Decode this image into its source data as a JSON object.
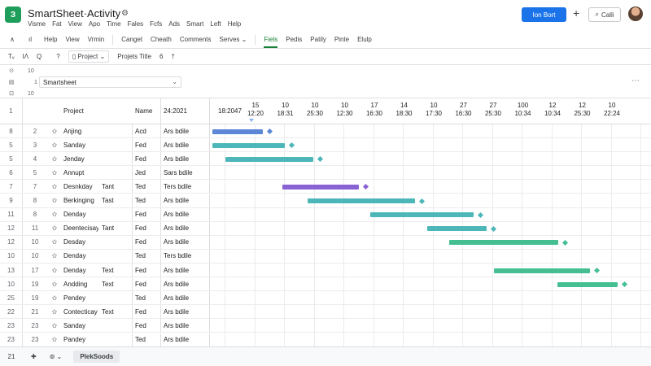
{
  "app": {
    "logo_text": "З",
    "title": "SmartSheet·Activity",
    "gear_icon": "gear-icon",
    "menu": [
      "Visme",
      "Fat",
      "View",
      "Apo",
      "Time",
      "Fales",
      "Fcfs",
      "Ads",
      "Smart",
      "Left",
      "Help"
    ],
    "share_label": "Ion Bort",
    "plus_label": "+",
    "call_label": "Calli",
    "accent_color": "#1a73e8",
    "brand_color": "#1e9e5a"
  },
  "toolbar": {
    "items": [
      "Help",
      "View",
      "Vrmin",
      "Canget",
      "Cheath",
      "Comments",
      "Serves"
    ],
    "right_items": [
      "Fiels",
      "Pedis",
      "Patily",
      "Pinte",
      "Elulp"
    ],
    "active_item": "Fiels"
  },
  "toolbar2": {
    "icons": [
      "Tᵥ",
      "IΛ",
      "Q"
    ],
    "help": "?",
    "project_dropdown": "Project",
    "project_title": "Projets Title",
    "count": "6",
    "sort": "†"
  },
  "info": {
    "row1_value": "10",
    "row2_index": "1",
    "sheet_name": "Smartsheet",
    "row3_value": "10",
    "more": "⋯"
  },
  "grid": {
    "header": {
      "rownum": "1",
      "project": "Project",
      "name": "Name",
      "date": "24:2021",
      "gantt_first": "18:2047",
      "gantt_cols": [
        [
          "15",
          "12:20"
        ],
        [
          "10",
          "18:31"
        ],
        [
          "10",
          "25:30"
        ],
        [
          "10",
          "12:30"
        ],
        [
          "17",
          "16:30"
        ],
        [
          "14",
          "18:30"
        ],
        [
          "10",
          "17:30"
        ],
        [
          "27",
          "16:30"
        ],
        [
          "27",
          "25:30"
        ],
        [
          "100",
          "10:34"
        ],
        [
          "12",
          "10:34"
        ],
        [
          "12",
          "25:30"
        ],
        [
          "10",
          "22:24"
        ]
      ]
    },
    "rows": [
      {
        "rownum": "8",
        "idx": "2",
        "project": "Anjing",
        "tag": "",
        "name": "Acd",
        "date": "Ars bdile"
      },
      {
        "rownum": "5",
        "idx": "3",
        "project": "Sanday",
        "tag": "",
        "name": "Fed",
        "date": "Ars bdile"
      },
      {
        "rownum": "5",
        "idx": "4",
        "project": "Jenday",
        "tag": "",
        "name": "Fed",
        "date": "Ars bdile"
      },
      {
        "rownum": "6",
        "idx": "5",
        "project": "Annupt",
        "tag": "",
        "name": "Jed",
        "date": "Sars bdile"
      },
      {
        "rownum": "7",
        "idx": "7",
        "project": "Desnkday",
        "tag": "Tant",
        "name": "Ted",
        "date": "Ters bdile"
      },
      {
        "rownum": "9",
        "idx": "8",
        "project": "Berkinging",
        "tag": "Tast",
        "name": "Ted",
        "date": "Ars bdile"
      },
      {
        "rownum": "11",
        "idx": "8",
        "project": "Denday",
        "tag": "",
        "name": "Fed",
        "date": "Ars bdile"
      },
      {
        "rownum": "12",
        "idx": "11",
        "project": "Deentecisay",
        "tag": "Tant",
        "name": "Fed",
        "date": "Ars bdile"
      },
      {
        "rownum": "12",
        "idx": "10",
        "project": "Desday",
        "tag": "",
        "name": "Fed",
        "date": "Ars bdile"
      },
      {
        "rownum": "10",
        "idx": "10",
        "project": "Denday",
        "tag": "",
        "name": "Ted",
        "date": "Ters bdile"
      },
      {
        "rownum": "13",
        "idx": "17",
        "project": "Denday",
        "tag": "Text",
        "name": "Fed",
        "date": "Ars bdile"
      },
      {
        "rownum": "10",
        "idx": "19",
        "project": "Andding",
        "tag": "Text",
        "name": "Fed",
        "date": "Ars bdile"
      },
      {
        "rownum": "25",
        "idx": "19",
        "project": "Pendey",
        "tag": "",
        "name": "Ted",
        "date": "Ars bdile"
      },
      {
        "rownum": "22",
        "idx": "21",
        "project": "Contecticay",
        "tag": "Text",
        "name": "Fed",
        "date": "Ars bdile"
      },
      {
        "rownum": "23",
        "idx": "23",
        "project": "Sanday",
        "tag": "",
        "name": "Fed",
        "date": "Ars bdile"
      },
      {
        "rownum": "23",
        "idx": "23",
        "project": "Pandey",
        "tag": "",
        "name": "Ted",
        "date": "Ars bdile"
      }
    ]
  },
  "bottom": {
    "count": "21",
    "add_icon": "add-icon",
    "view_icon": "view-icon",
    "tab_label": "PlekSoods"
  },
  "colors": {
    "bar_blue": "#5b87d6",
    "bar_teal": "#4db6b8",
    "bar_purple": "#8a63d2",
    "bar_green": "#45bf92"
  }
}
